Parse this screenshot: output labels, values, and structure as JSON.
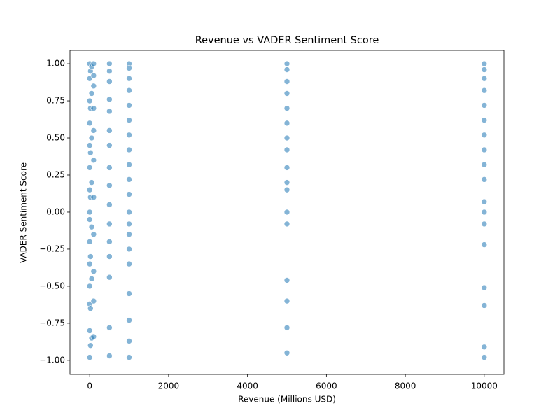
{
  "chart_data": {
    "type": "scatter",
    "title": "Revenue vs VADER Sentiment Score",
    "x_label": "Revenue (Millions USD)",
    "y_label": "VADER Sentiment Score",
    "color": "#1f77b4",
    "xlim": [
      -500,
      10500
    ],
    "ylim": [
      -1.095,
      1.09
    ],
    "xticks": [
      0,
      2000,
      4000,
      6000,
      8000,
      10000
    ],
    "yticks": [
      {
        "value": -1,
        "label": "−1.00"
      },
      {
        "value": -0.75,
        "label": "−0.75"
      },
      {
        "value": -0.5,
        "label": "−0.50"
      },
      {
        "value": -0.25,
        "label": "−0.25"
      },
      {
        "value": 0,
        "label": "0.00"
      },
      {
        "value": 0.25,
        "label": "0.25"
      },
      {
        "value": 0.5,
        "label": "0.50"
      },
      {
        "value": 0.75,
        "label": "0.75"
      },
      {
        "value": 1,
        "label": "1.00"
      }
    ],
    "x": [
      0,
      0,
      0,
      0,
      0,
      0,
      0,
      0,
      0,
      0,
      0,
      0,
      0,
      0,
      0,
      20,
      20,
      20,
      20,
      20,
      20,
      20,
      50,
      50,
      50,
      50,
      50,
      50,
      50,
      100,
      100,
      100,
      100,
      100,
      100,
      100,
      100,
      100,
      100,
      100,
      500,
      500,
      500,
      500,
      500,
      500,
      500,
      500,
      500,
      500,
      500,
      500,
      500,
      500,
      500,
      500,
      1000,
      1000,
      1000,
      1000,
      1000,
      1000,
      1000,
      1000,
      1000,
      1000,
      1000,
      1000,
      1000,
      1000,
      1000,
      1000,
      1000,
      1000,
      1000,
      1000,
      5000,
      5000,
      5000,
      5000,
      5000,
      5000,
      5000,
      5000,
      5000,
      5000,
      5000,
      5000,
      5000,
      5000,
      5000,
      5000,
      5000,
      10000,
      10000,
      10000,
      10000,
      10000,
      10000,
      10000,
      10000,
      10000,
      10000,
      10000,
      10000,
      10000,
      10000,
      10000,
      10000,
      10000,
      10000
    ],
    "y": [
      1.0,
      0.9,
      0.75,
      0.6,
      0.45,
      0.3,
      0.15,
      0.0,
      -0.05,
      -0.2,
      -0.35,
      -0.5,
      -0.62,
      -0.8,
      -0.98,
      0.95,
      0.7,
      0.4,
      0.1,
      -0.3,
      -0.65,
      -0.9,
      0.98,
      0.8,
      0.5,
      0.2,
      -0.1,
      -0.45,
      -0.85,
      1.0,
      0.92,
      0.85,
      0.7,
      0.55,
      0.35,
      0.1,
      -0.15,
      -0.4,
      -0.6,
      -0.84,
      1.0,
      0.95,
      0.88,
      0.76,
      0.68,
      0.55,
      0.45,
      0.3,
      0.18,
      0.05,
      -0.08,
      -0.2,
      -0.3,
      -0.44,
      -0.78,
      -0.97,
      1.0,
      0.97,
      0.9,
      0.82,
      0.72,
      0.62,
      0.52,
      0.42,
      0.32,
      0.22,
      0.12,
      0.0,
      -0.08,
      -0.15,
      -0.25,
      -0.35,
      -0.55,
      -0.73,
      -0.87,
      -0.98,
      1.0,
      0.96,
      0.88,
      0.8,
      0.7,
      0.6,
      0.5,
      0.42,
      0.3,
      0.2,
      0.15,
      0.0,
      -0.08,
      -0.46,
      -0.6,
      -0.78,
      -0.95,
      1.0,
      0.96,
      0.9,
      0.82,
      0.72,
      0.62,
      0.52,
      0.42,
      0.32,
      0.22,
      0.07,
      0.0,
      -0.08,
      -0.22,
      -0.51,
      -0.63,
      -0.91,
      -0.98
    ]
  }
}
